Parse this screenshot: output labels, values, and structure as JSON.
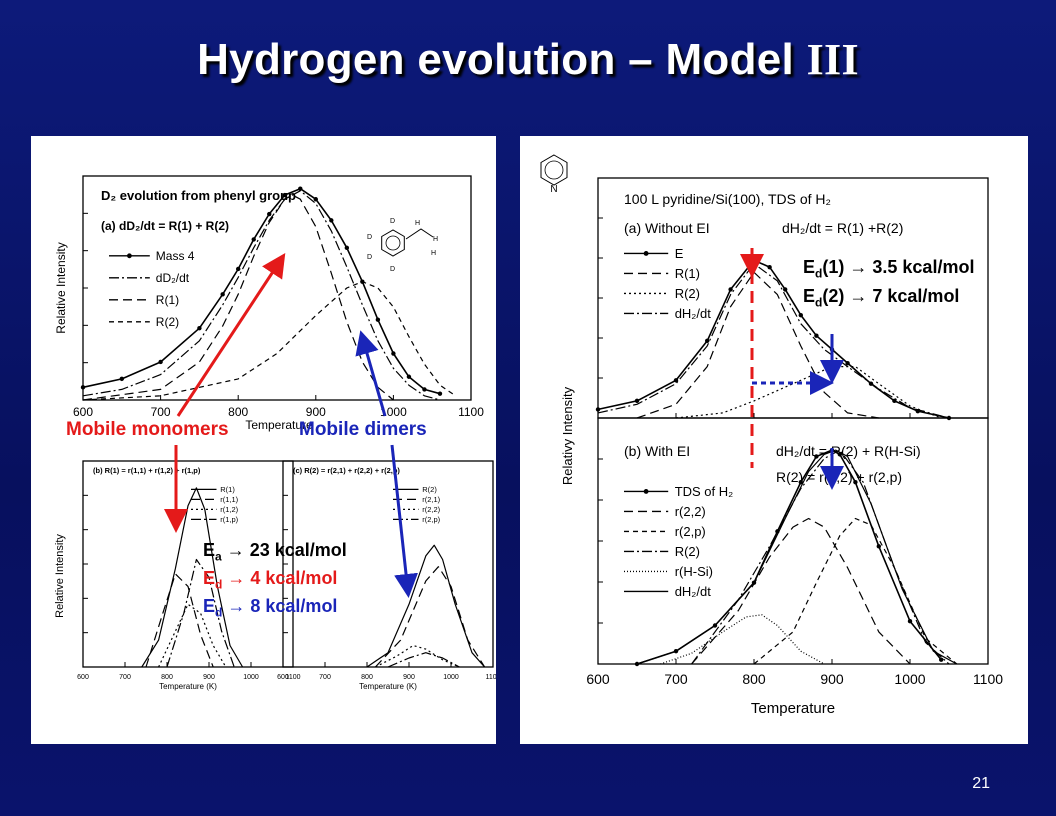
{
  "slide": {
    "title_main": "Hydrogen evolution – Model ",
    "title_roman": "III",
    "number": "21"
  },
  "colors": {
    "background": "#0b1670",
    "accent_red": "#e41a1a",
    "accent_blue": "#1a25b8"
  },
  "annotations": {
    "mobile_monomers": "Mobile monomers",
    "mobile_dimers": "Mobile dimers",
    "ea_sym": "E",
    "ea_sub": "a",
    "ea_val": "23 kcal/mol",
    "ed4_sym": "E",
    "ed4_sub": "d",
    "ed4_val": "4 kcal/mol",
    "ed8_sym": "E",
    "ed8_sub": "d",
    "ed8_val": "8 kcal/mol",
    "ed1_sym": "E",
    "ed1_sub": "d",
    "ed1_lbl": "(1)",
    "ed1_val": "3.5 kcal/mol",
    "ed2_sym": "E",
    "ed2_sub": "d",
    "ed2_lbl": "(2)",
    "ed2_val": "7 kcal/mol",
    "arrow_glyph": "→"
  },
  "chart_data": [
    {
      "id": "a",
      "type": "line",
      "title": "D₂ evolution from phenyl group",
      "subtitle": "(a) dD₂/dt = R(1) + R(2)",
      "xlabel": "Temperature",
      "ylabel": "Relative Intensity",
      "xlim": [
        600,
        1100
      ],
      "ylim": [
        0,
        1.05
      ],
      "xticks": [
        "600",
        "700",
        "800",
        "900",
        "1000",
        "1100"
      ],
      "legend_position": "left",
      "series": [
        {
          "name": "Mass 4",
          "style": "dot-line",
          "x": [
            600,
            650,
            700,
            750,
            780,
            800,
            820,
            840,
            860,
            880,
            900,
            920,
            940,
            960,
            980,
            1000,
            1020,
            1040,
            1060
          ],
          "y": [
            0.06,
            0.1,
            0.18,
            0.34,
            0.5,
            0.62,
            0.76,
            0.88,
            0.97,
            1.0,
            0.95,
            0.85,
            0.72,
            0.56,
            0.38,
            0.22,
            0.11,
            0.05,
            0.03
          ]
        },
        {
          "name": "dD₂/dt",
          "style": "dash-dot",
          "x": [
            600,
            650,
            700,
            750,
            780,
            800,
            820,
            840,
            860,
            880,
            900,
            920,
            940,
            960,
            980,
            1000,
            1020,
            1040,
            1060
          ],
          "y": [
            0.02,
            0.05,
            0.12,
            0.28,
            0.45,
            0.58,
            0.72,
            0.85,
            0.95,
            0.99,
            0.93,
            0.8,
            0.63,
            0.45,
            0.28,
            0.15,
            0.07,
            0.02,
            0.0
          ]
        },
        {
          "name": "R(1)",
          "style": "dashed",
          "x": [
            600,
            700,
            750,
            780,
            800,
            820,
            840,
            860,
            870,
            880,
            900,
            920,
            940,
            960,
            980,
            1000
          ],
          "y": [
            0.0,
            0.05,
            0.18,
            0.35,
            0.5,
            0.68,
            0.84,
            0.95,
            0.97,
            0.95,
            0.82,
            0.6,
            0.37,
            0.18,
            0.06,
            0.0
          ]
        },
        {
          "name": "R(2)",
          "style": "short-dash",
          "x": [
            600,
            700,
            800,
            850,
            900,
            940,
            960,
            980,
            1000,
            1020,
            1040,
            1060,
            1080
          ],
          "y": [
            0.0,
            0.02,
            0.1,
            0.22,
            0.4,
            0.53,
            0.56,
            0.53,
            0.44,
            0.3,
            0.17,
            0.07,
            0.02
          ]
        }
      ]
    },
    {
      "id": "b",
      "type": "line",
      "title": "(b) R(1) = r(1,1) + r(1,2) + r(1,p)",
      "xlabel": "Temperature (K)",
      "ylabel": "Relative Intensity",
      "xlim": [
        600,
        1100
      ],
      "ylim": [
        0,
        1.1
      ],
      "xticks": [
        "600",
        "700",
        "800",
        "900",
        "1000",
        "1100"
      ],
      "series": [
        {
          "name": "R(1)",
          "style": "solid",
          "x": [
            740,
            780,
            820,
            850,
            870,
            890,
            920,
            950,
            980
          ],
          "y": [
            0.0,
            0.15,
            0.55,
            0.9,
            1.0,
            0.88,
            0.45,
            0.12,
            0.0
          ]
        },
        {
          "name": "r(1,1)",
          "style": "dashed",
          "x": [
            750,
            790,
            820,
            850,
            880,
            910
          ],
          "y": [
            0.0,
            0.3,
            0.52,
            0.45,
            0.18,
            0.0
          ]
        },
        {
          "name": "r(1,2)",
          "style": "dotted",
          "x": [
            780,
            820,
            850,
            880,
            910,
            940
          ],
          "y": [
            0.0,
            0.2,
            0.35,
            0.3,
            0.12,
            0.0
          ]
        },
        {
          "name": "r(1,p)",
          "style": "dash-dot",
          "x": [
            800,
            840,
            870,
            900,
            930,
            960
          ],
          "y": [
            0.0,
            0.3,
            0.6,
            0.5,
            0.2,
            0.0
          ]
        }
      ]
    },
    {
      "id": "c",
      "type": "line",
      "title": "(c) R(2) = r(2,1) + r(2,2) + r(2,p)",
      "xlabel": "Temperature (K)",
      "xlim": [
        600,
        1100
      ],
      "ylim": [
        0,
        1.1
      ],
      "xticks": [
        "600",
        "700",
        "800",
        "900",
        "1000",
        "1100"
      ],
      "series": [
        {
          "name": "R(2)",
          "style": "solid",
          "x": [
            800,
            850,
            900,
            940,
            960,
            980,
            1010,
            1050,
            1080
          ],
          "y": [
            0.0,
            0.08,
            0.35,
            0.62,
            0.68,
            0.6,
            0.35,
            0.08,
            0.0
          ]
        },
        {
          "name": "r(2,1)",
          "style": "dashed",
          "x": [
            820,
            880,
            940,
            970,
            1000,
            1040,
            1080
          ],
          "y": [
            0.0,
            0.15,
            0.48,
            0.56,
            0.45,
            0.15,
            0.0
          ]
        },
        {
          "name": "r(2,2)",
          "style": "dotted",
          "x": [
            820,
            870,
            910,
            940,
            980,
            1020
          ],
          "y": [
            0.0,
            0.06,
            0.12,
            0.1,
            0.04,
            0.0
          ]
        },
        {
          "name": "r(2,p)",
          "style": "dash-dot",
          "x": [
            850,
            900,
            940,
            980,
            1020
          ],
          "y": [
            0.0,
            0.05,
            0.08,
            0.05,
            0.0
          ]
        }
      ]
    },
    {
      "id": "d",
      "type": "line",
      "title": "100 L pyridine/Si(100), TDS of H₂",
      "subtitle_a": "(a) Without EI",
      "eq_a": "dH₂/dt = R(1) +R(2)",
      "subtitle_b": "(b) With EI",
      "eq_b1": "dH₂/dt = R(2) + R(H-Si)",
      "eq_b2": "R(2) = r(2,2) + r(2,p)",
      "xlabel": "Temperature",
      "ylabel": "Relativy Intensity",
      "xlim": [
        600,
        1100
      ],
      "xticks": [
        "600",
        "700",
        "800",
        "900",
        "1000",
        "1100"
      ],
      "molecule_label": "N",
      "top_series": [
        {
          "name": "E",
          "style": "dot-line",
          "x": [
            600,
            650,
            700,
            740,
            770,
            800,
            820,
            840,
            860,
            880,
            900,
            920,
            950,
            980,
            1010,
            1050
          ],
          "y": [
            0.05,
            0.1,
            0.22,
            0.45,
            0.75,
            0.92,
            0.88,
            0.75,
            0.6,
            0.48,
            0.4,
            0.32,
            0.2,
            0.1,
            0.04,
            0.0
          ]
        },
        {
          "name": "R(1)",
          "style": "dashed",
          "x": [
            650,
            700,
            740,
            770,
            800,
            830,
            860,
            890,
            920,
            960
          ],
          "y": [
            0.0,
            0.08,
            0.3,
            0.65,
            0.85,
            0.72,
            0.42,
            0.15,
            0.03,
            0.0
          ]
        },
        {
          "name": "R(2)",
          "style": "dotted",
          "x": [
            700,
            760,
            800,
            850,
            900,
            930,
            960,
            1000,
            1040
          ],
          "y": [
            0.0,
            0.03,
            0.1,
            0.2,
            0.3,
            0.3,
            0.2,
            0.07,
            0.0
          ]
        },
        {
          "name": "dH₂/dt",
          "style": "dash-dot",
          "x": [
            600,
            650,
            700,
            740,
            770,
            800,
            830,
            860,
            890,
            920,
            960,
            1000,
            1050
          ],
          "y": [
            0.03,
            0.08,
            0.2,
            0.42,
            0.72,
            0.9,
            0.8,
            0.55,
            0.4,
            0.3,
            0.17,
            0.06,
            0.0
          ]
        }
      ],
      "bottom_series": [
        {
          "name": "TDS of H₂",
          "style": "dot-line",
          "x": [
            650,
            700,
            750,
            800,
            830,
            860,
            880,
            900,
            910,
            930,
            960,
            1000,
            1040
          ],
          "y": [
            0.0,
            0.06,
            0.18,
            0.38,
            0.62,
            0.85,
            0.97,
            1.0,
            0.98,
            0.85,
            0.55,
            0.2,
            0.02
          ]
        },
        {
          "name": "r(2,2)",
          "style": "dashed",
          "x": [
            720,
            780,
            820,
            850,
            870,
            890,
            920,
            960,
            1000
          ],
          "y": [
            0.0,
            0.25,
            0.5,
            0.64,
            0.68,
            0.64,
            0.45,
            0.15,
            0.0
          ]
        },
        {
          "name": "r(2,p)",
          "style": "short-dash",
          "x": [
            800,
            850,
            880,
            910,
            930,
            950,
            980,
            1020,
            1060
          ],
          "y": [
            0.0,
            0.15,
            0.38,
            0.6,
            0.68,
            0.65,
            0.45,
            0.12,
            0.0
          ]
        },
        {
          "name": "R(2)",
          "style": "dash-dot",
          "x": [
            720,
            780,
            820,
            860,
            890,
            910,
            940,
            980,
            1020,
            1050
          ],
          "y": [
            0.0,
            0.3,
            0.55,
            0.82,
            0.96,
            1.0,
            0.85,
            0.45,
            0.1,
            0.0
          ]
        },
        {
          "name": "r(H-Si)",
          "style": "fine-dotted",
          "x": [
            680,
            720,
            760,
            790,
            810,
            830,
            860,
            890
          ],
          "y": [
            0.0,
            0.05,
            0.15,
            0.22,
            0.23,
            0.18,
            0.06,
            0.0
          ]
        },
        {
          "name": "dH₂/dt",
          "style": "solid",
          "x": [
            650,
            700,
            750,
            800,
            840,
            870,
            890,
            905,
            920,
            950,
            990,
            1030,
            1060
          ],
          "y": [
            0.0,
            0.06,
            0.18,
            0.38,
            0.68,
            0.9,
            0.98,
            1.0,
            0.97,
            0.75,
            0.35,
            0.06,
            0.0
          ]
        }
      ]
    }
  ]
}
